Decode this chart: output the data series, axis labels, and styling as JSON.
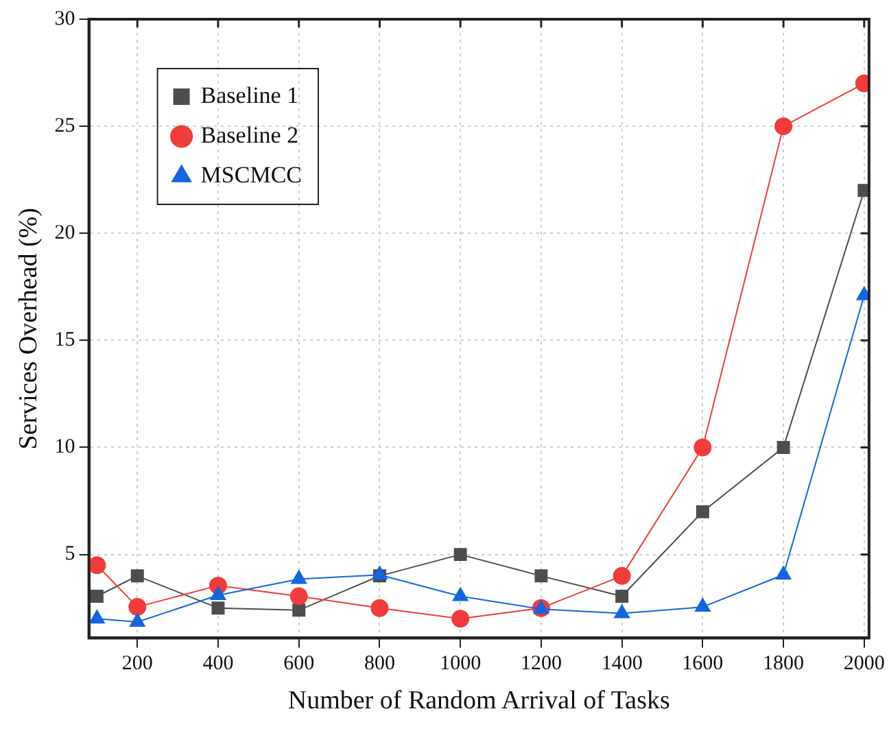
{
  "chart_data": {
    "type": "line",
    "xlabel": "Number of Random Arrival of Tasks",
    "ylabel": "Services Overhead (%)",
    "x": [
      100,
      200,
      400,
      600,
      800,
      1000,
      1200,
      1400,
      1600,
      1800,
      2000
    ],
    "xlim": [
      80,
      2012
    ],
    "xticks": [
      200,
      400,
      600,
      800,
      1000,
      1200,
      1400,
      1600,
      1800,
      2000
    ],
    "ylim": [
      1.1,
      30
    ],
    "yticks": [
      5,
      10,
      15,
      20,
      25,
      30
    ],
    "grid": true,
    "legend": "top left",
    "line_style": "solid",
    "series": [
      {
        "name": "Baseline 1",
        "color": "#4d4d4d",
        "marker": "square",
        "values": [
          3.05,
          4.0,
          2.5,
          2.4,
          4.0,
          5.0,
          4.0,
          3.05,
          7,
          10,
          22
        ]
      },
      {
        "name": "Baseline 2",
        "color": "#f23c3c",
        "marker": "circle",
        "values": [
          4.5,
          2.55,
          3.55,
          3.05,
          2.5,
          2.0,
          2.5,
          4.0,
          10,
          25,
          27
        ]
      },
      {
        "name": "MSCMCC",
        "color": "#1565e0",
        "marker": "triangle",
        "values": [
          2.0,
          1.85,
          3.1,
          3.85,
          4.05,
          3.05,
          2.45,
          2.25,
          2.55,
          4.05,
          17.1
        ]
      }
    ]
  }
}
